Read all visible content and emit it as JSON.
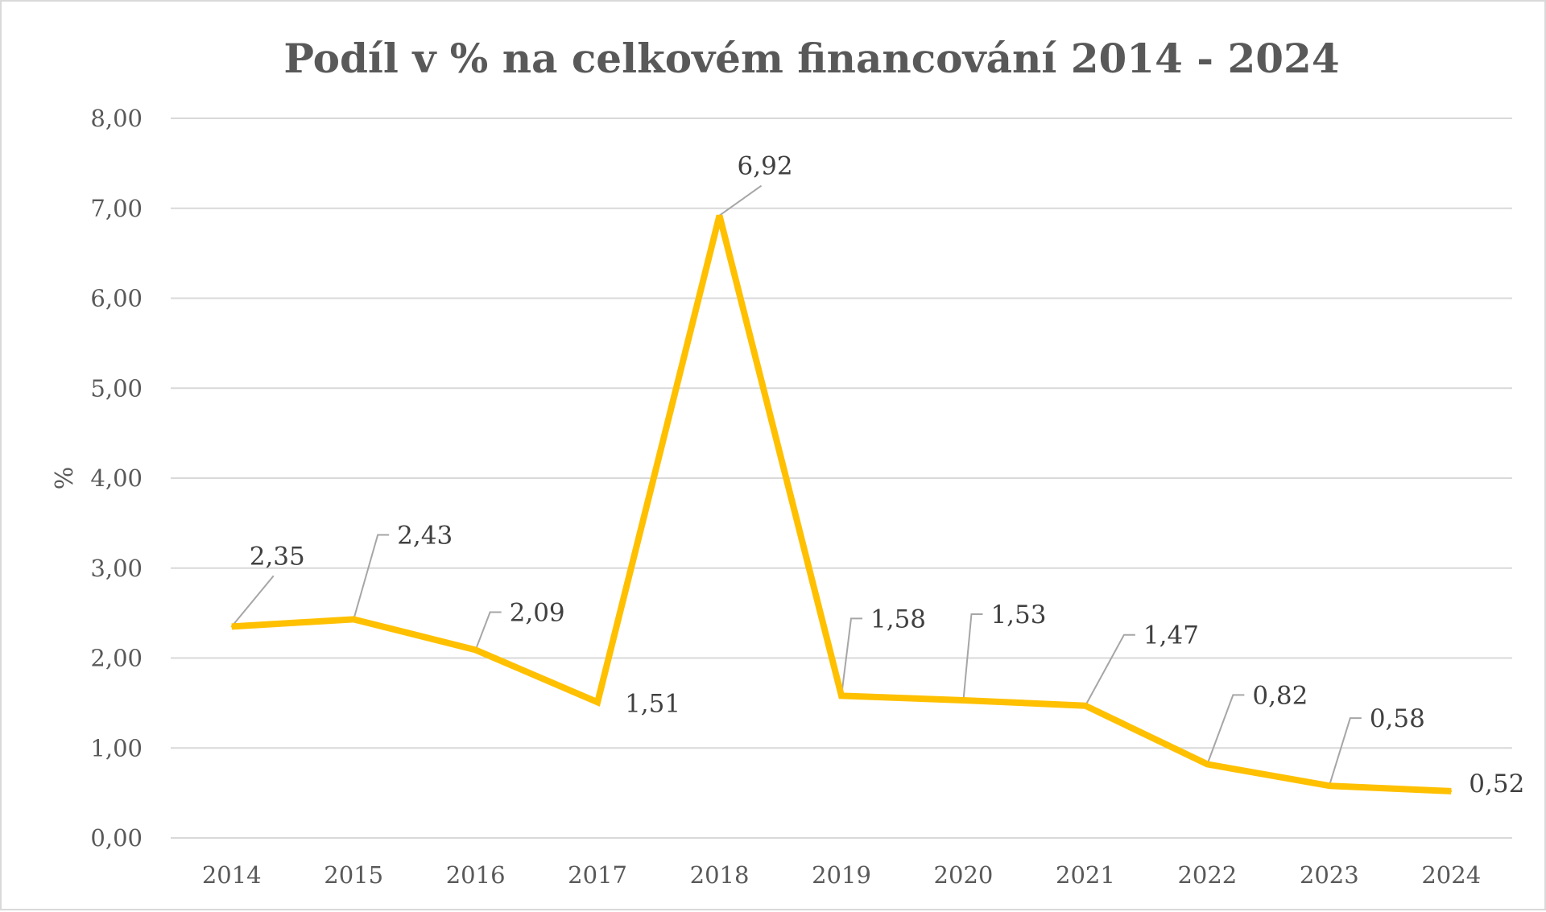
{
  "chart_data": {
    "type": "line",
    "title": "Podíl v % na celkovém financování 2014  - 2024",
    "xlabel": "",
    "ylabel": "%",
    "categories": [
      "2014",
      "2015",
      "2016",
      "2017",
      "2018",
      "2019",
      "2020",
      "2021",
      "2022",
      "2023",
      "2024"
    ],
    "series": [
      {
        "values": [
          2.35,
          2.43,
          2.09,
          1.51,
          6.92,
          1.58,
          1.53,
          1.47,
          0.82,
          0.58,
          0.52
        ]
      }
    ],
    "data_labels": [
      "2,35",
      "2,43",
      "2,09",
      "1,51",
      "6,92",
      "1,58",
      "1,53",
      "1,47",
      "0,82",
      "0,58",
      "0,52"
    ],
    "yticks": [
      "0,00",
      "1,00",
      "2,00",
      "3,00",
      "4,00",
      "5,00",
      "6,00",
      "7,00",
      "8,00"
    ],
    "ylim": [
      0,
      8
    ],
    "grid": true,
    "legend": "none",
    "line_color": "#FFC000"
  }
}
